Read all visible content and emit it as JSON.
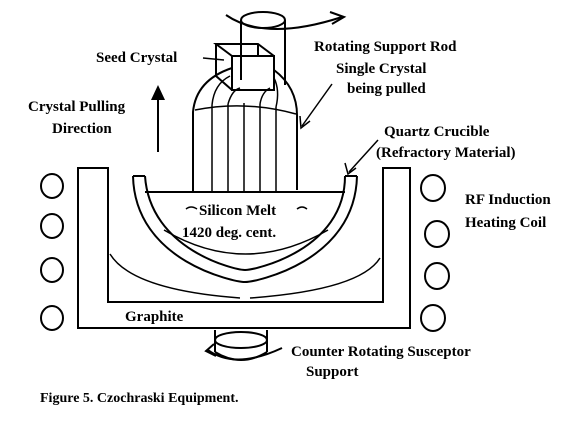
{
  "labels": {
    "seed_crystal": "Seed Crystal",
    "rotating_support_rod": "Rotating Support Rod",
    "single_crystal_1": "Single Crystal",
    "single_crystal_2": "being pulled",
    "pulling_direction_1": "Crystal Pulling",
    "pulling_direction_2": "Direction",
    "quartz_crucible_1": "Quartz Crucible",
    "quartz_crucible_2": "(Refractory Material)",
    "silicon_melt": "Silicon Melt",
    "melt_temp": "1420 deg. cent.",
    "rf_coil_1": "RF Induction",
    "rf_coil_2": "Heating Coil",
    "graphite": "Graphite",
    "susceptor_1": "Counter Rotating Susceptor",
    "susceptor_2": "Support"
  },
  "caption": "Figure 5. Czochraski Equipment."
}
